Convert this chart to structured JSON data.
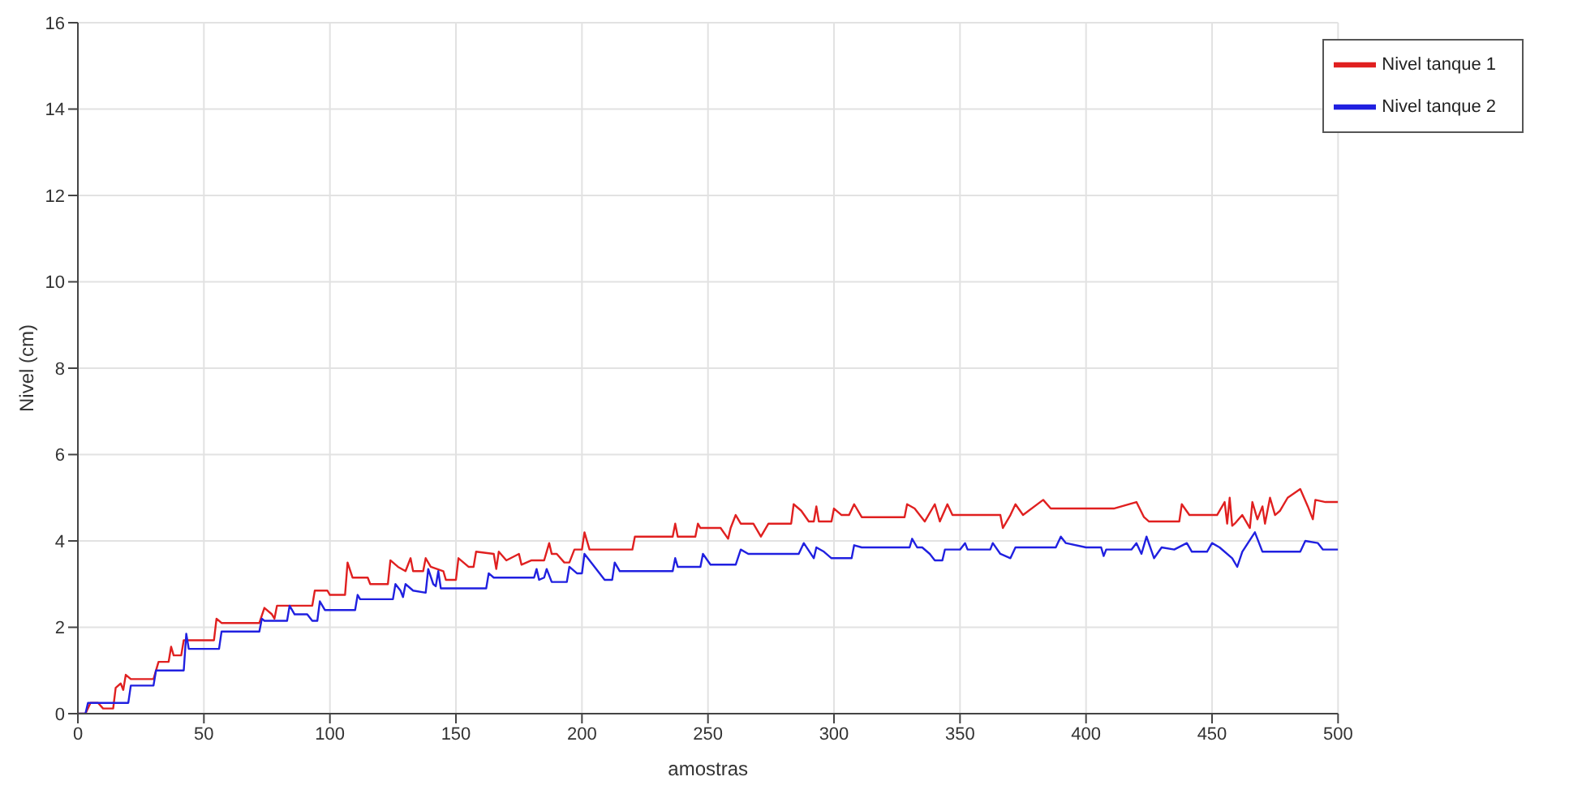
{
  "chart_data": {
    "type": "line",
    "xlabel": "amostras",
    "ylabel": "Nivel (cm)",
    "xlim": [
      0,
      500
    ],
    "xticks": [
      0,
      50,
      100,
      150,
      200,
      250,
      300,
      350,
      400,
      450,
      500
    ],
    "ylim": [
      0,
      16
    ],
    "yticks": [
      0,
      2,
      4,
      6,
      8,
      10,
      12,
      14,
      16
    ],
    "grid": true,
    "legend": "top right",
    "marker": "none",
    "line_style": "solid",
    "series": [
      {
        "name": "Nivel tanque 1",
        "color": "#e02020",
        "x": [
          0,
          3,
          5,
          8,
          10,
          14,
          15,
          17,
          18,
          19,
          21,
          30,
          32,
          36,
          37,
          38,
          41,
          42,
          54,
          55,
          57,
          72,
          74,
          77,
          78,
          79,
          93,
          94,
          99,
          100,
          106,
          107,
          109,
          115,
          116,
          123,
          124,
          127,
          130,
          132,
          133,
          137,
          138,
          140,
          145,
          146,
          150,
          151,
          155,
          157,
          158,
          165,
          166,
          167,
          170,
          175,
          176,
          180,
          185,
          187,
          188,
          190,
          193,
          195,
          197,
          200,
          201,
          203,
          220,
          221,
          236,
          237,
          238,
          245,
          246,
          247,
          255,
          258,
          259,
          261,
          263,
          268,
          271,
          274,
          283,
          284,
          287,
          290,
          292,
          293,
          294,
          299,
          300,
          303,
          306,
          308,
          311,
          328,
          329,
          332,
          336,
          340,
          342,
          345,
          347,
          366,
          367,
          370,
          372,
          375,
          383,
          386,
          411,
          420,
          423,
          425,
          437,
          438,
          441,
          445,
          452,
          455,
          456,
          457,
          458,
          459,
          462,
          465,
          466,
          468,
          470,
          471,
          473,
          475,
          477,
          480,
          485,
          488,
          490,
          491,
          495,
          500
        ],
        "values": [
          0,
          0,
          0.25,
          0.25,
          0.12,
          0.12,
          0.6,
          0.7,
          0.55,
          0.9,
          0.8,
          0.8,
          1.2,
          1.2,
          1.55,
          1.35,
          1.35,
          1.7,
          1.7,
          2.2,
          2.1,
          2.1,
          2.45,
          2.3,
          2.2,
          2.5,
          2.5,
          2.85,
          2.85,
          2.75,
          2.75,
          3.5,
          3.15,
          3.15,
          3,
          3,
          3.55,
          3.4,
          3.3,
          3.6,
          3.3,
          3.3,
          3.6,
          3.4,
          3.3,
          3.1,
          3.1,
          3.6,
          3.4,
          3.4,
          3.75,
          3.7,
          3.35,
          3.75,
          3.55,
          3.7,
          3.45,
          3.55,
          3.55,
          3.95,
          3.7,
          3.7,
          3.5,
          3.5,
          3.8,
          3.8,
          4.2,
          3.8,
          3.8,
          4.1,
          4.1,
          4.4,
          4.1,
          4.1,
          4.4,
          4.3,
          4.3,
          4.05,
          4.3,
          4.6,
          4.4,
          4.4,
          4.1,
          4.4,
          4.4,
          4.85,
          4.7,
          4.45,
          4.45,
          4.8,
          4.45,
          4.45,
          4.75,
          4.6,
          4.6,
          4.85,
          4.55,
          4.55,
          4.85,
          4.75,
          4.45,
          4.85,
          4.45,
          4.85,
          4.6,
          4.6,
          4.3,
          4.6,
          4.85,
          4.6,
          4.95,
          4.75,
          4.75,
          4.9,
          4.55,
          4.45,
          4.45,
          4.85,
          4.6,
          4.6,
          4.6,
          4.9,
          4.4,
          5,
          4.35,
          4.4,
          4.6,
          4.3,
          4.9,
          4.5,
          4.8,
          4.4,
          5,
          4.6,
          4.7,
          5,
          5.2,
          4.8,
          4.5,
          4.95,
          4.9,
          4.9
        ]
      },
      {
        "name": "Nivel tanque 2",
        "color": "#2020e0",
        "x": [
          0,
          3,
          4,
          20,
          21,
          30,
          31,
          42,
          43,
          44,
          56,
          57,
          72,
          73,
          74,
          83,
          84,
          86,
          91,
          93,
          95,
          96,
          98,
          110,
          111,
          112,
          125,
          126,
          128,
          129,
          130,
          133,
          138,
          139,
          141,
          142,
          143,
          144,
          162,
          163,
          165,
          170,
          173,
          181,
          182,
          183,
          185,
          186,
          188,
          194,
          195,
          198,
          200,
          201,
          205,
          209,
          212,
          213,
          215,
          236,
          237,
          238,
          247,
          248,
          251,
          261,
          263,
          266,
          286,
          288,
          292,
          293,
          296,
          299,
          307,
          308,
          311,
          330,
          331,
          333,
          335,
          338,
          340,
          343,
          344,
          350,
          352,
          353,
          362,
          363,
          366,
          370,
          372,
          388,
          390,
          392,
          400,
          406,
          407,
          408,
          418,
          420,
          422,
          424,
          427,
          430,
          435,
          440,
          442,
          448,
          450,
          453,
          458,
          460,
          462,
          467,
          470,
          485,
          487,
          492,
          494,
          500
        ],
        "values": [
          0,
          0,
          0.25,
          0.25,
          0.65,
          0.65,
          1,
          1,
          1.85,
          1.5,
          1.5,
          1.9,
          1.9,
          2.2,
          2.15,
          2.15,
          2.5,
          2.3,
          2.3,
          2.15,
          2.15,
          2.6,
          2.4,
          2.4,
          2.75,
          2.65,
          2.65,
          3,
          2.85,
          2.7,
          3,
          2.85,
          2.8,
          3.35,
          3,
          2.95,
          3.3,
          2.9,
          2.9,
          3.25,
          3.15,
          3.15,
          3.15,
          3.15,
          3.35,
          3.1,
          3.15,
          3.35,
          3.05,
          3.05,
          3.4,
          3.25,
          3.25,
          3.7,
          3.4,
          3.1,
          3.1,
          3.5,
          3.3,
          3.3,
          3.6,
          3.4,
          3.4,
          3.7,
          3.45,
          3.45,
          3.8,
          3.7,
          3.7,
          3.95,
          3.6,
          3.85,
          3.75,
          3.6,
          3.6,
          3.9,
          3.85,
          3.85,
          4.05,
          3.85,
          3.85,
          3.7,
          3.55,
          3.55,
          3.8,
          3.8,
          3.95,
          3.8,
          3.8,
          3.95,
          3.7,
          3.6,
          3.85,
          3.85,
          4.1,
          3.95,
          3.85,
          3.85,
          3.65,
          3.8,
          3.8,
          3.95,
          3.7,
          4.1,
          3.6,
          3.85,
          3.8,
          3.95,
          3.75,
          3.75,
          3.95,
          3.85,
          3.6,
          3.4,
          3.75,
          4.2,
          3.75,
          3.75,
          4,
          3.95,
          3.8,
          3.8
        ]
      }
    ]
  }
}
